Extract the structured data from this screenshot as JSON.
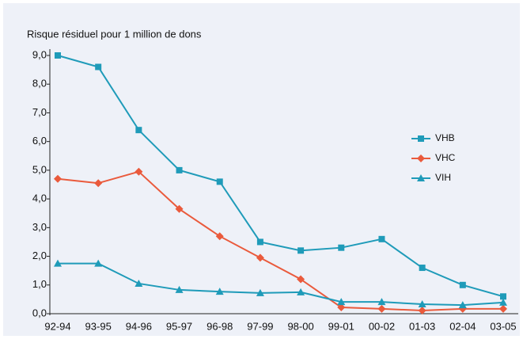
{
  "chart_data": {
    "type": "line",
    "title": "Risque résiduel pour 1 million de dons",
    "categories": [
      "92-94",
      "93-95",
      "94-96",
      "95-97",
      "96-98",
      "97-99",
      "98-00",
      "99-01",
      "00-02",
      "01-03",
      "02-04",
      "03-05"
    ],
    "series": [
      {
        "name": "VHB",
        "color": "#1f9bb9",
        "marker": "square",
        "values": [
          9.0,
          8.6,
          6.4,
          5.0,
          4.6,
          2.5,
          2.2,
          2.3,
          2.6,
          1.6,
          1.0,
          0.6
        ]
      },
      {
        "name": "VHC",
        "color": "#ea5a3c",
        "marker": "diamond",
        "values": [
          4.7,
          4.55,
          4.95,
          3.65,
          2.7,
          1.95,
          1.2,
          0.22,
          0.17,
          0.11,
          0.17,
          0.17
        ]
      },
      {
        "name": "VIH",
        "color": "#1f9bb9",
        "marker": "triangle",
        "values": [
          1.75,
          1.75,
          1.05,
          0.83,
          0.77,
          0.72,
          0.75,
          0.41,
          0.41,
          0.33,
          0.3,
          0.39
        ]
      }
    ],
    "ylim": [
      0,
      9
    ],
    "yticks": [
      {
        "value": 0,
        "label": "0,0"
      },
      {
        "value": 1,
        "label": "1,0"
      },
      {
        "value": 2,
        "label": "2,0"
      },
      {
        "value": 3,
        "label": "3,0"
      },
      {
        "value": 4,
        "label": "4,0"
      },
      {
        "value": 5,
        "label": "5,0"
      },
      {
        "value": 6,
        "label": "6,0"
      },
      {
        "value": 7,
        "label": "7,0"
      },
      {
        "value": 8,
        "label": "8,0"
      },
      {
        "value": 9,
        "label": "9,0"
      }
    ],
    "grid": false,
    "legend": "right"
  }
}
